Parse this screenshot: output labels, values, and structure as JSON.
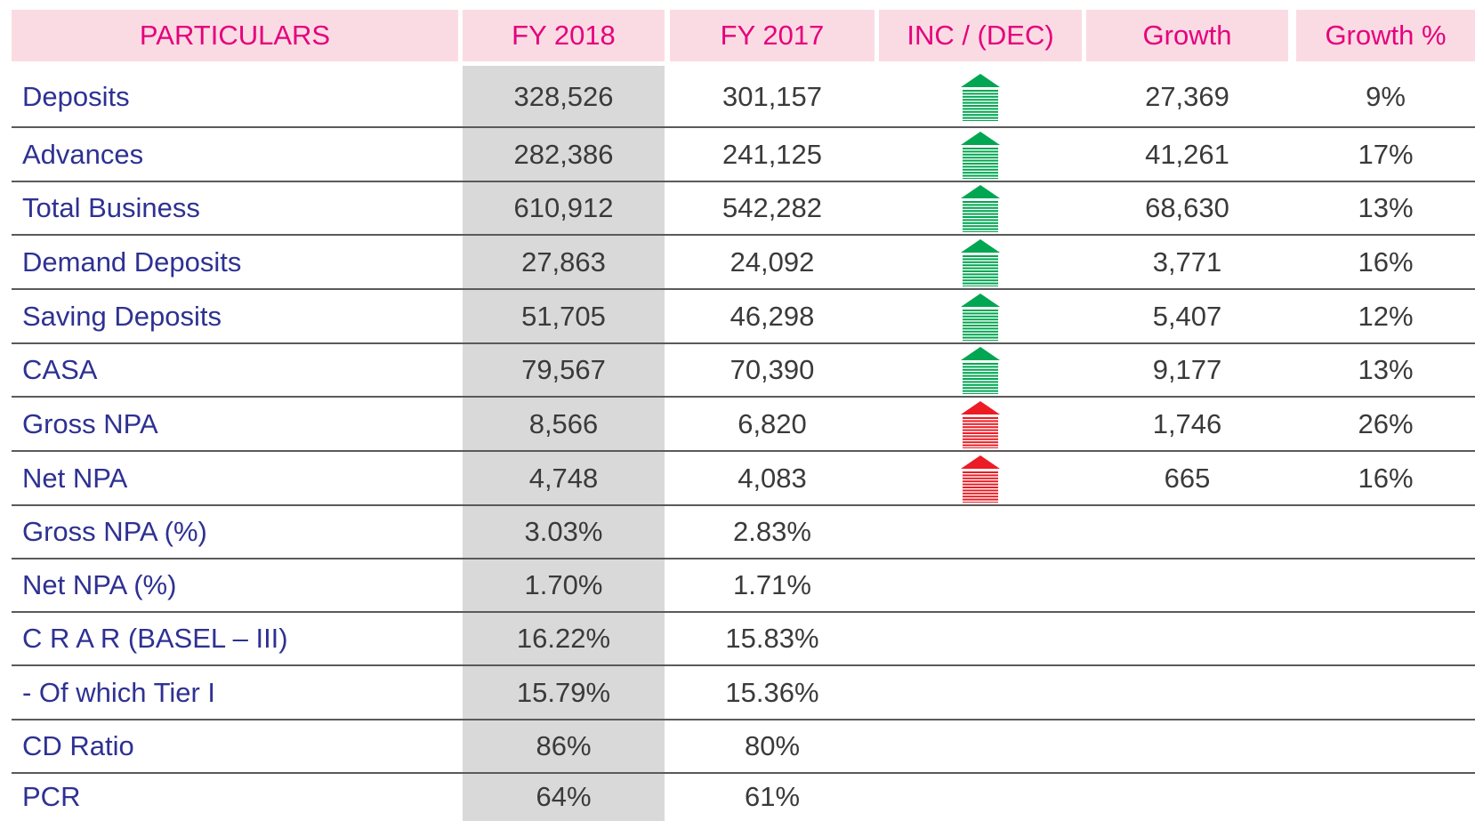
{
  "table": {
    "header": [
      "PARTICULARS",
      "FY 2018",
      "FY 2017",
      "INC / (DEC)",
      "Growth",
      "Growth %"
    ],
    "rows": [
      {
        "label": "Deposits",
        "fy2018": "328,526",
        "fy2017": "301,157",
        "growth": "27,369",
        "growth_pct": "9%"
      },
      {
        "label": "Advances",
        "fy2018": "282,386",
        "fy2017": "241,125",
        "growth": "41,261",
        "growth_pct": "17%"
      },
      {
        "label": "Total Business",
        "fy2018": "610,912",
        "fy2017": "542,282",
        "growth": "68,630",
        "growth_pct": "13%"
      },
      {
        "label": "Demand Deposits",
        "fy2018": "27,863",
        "fy2017": "24,092",
        "growth": "3,771",
        "growth_pct": "16%"
      },
      {
        "label": "Saving Deposits",
        "fy2018": "51,705",
        "fy2017": "46,298",
        "growth": "5,407",
        "growth_pct": "12%"
      },
      {
        "label": "CASA",
        "fy2018": "79,567",
        "fy2017": "70,390",
        "growth": "9,177",
        "growth_pct": "13%"
      },
      {
        "label": "Gross NPA",
        "fy2018": "8,566",
        "fy2017": "6,820",
        "growth": "1,746",
        "growth_pct": "26%"
      },
      {
        "label": "Net NPA",
        "fy2018": "4,748",
        "fy2017": "4,083",
        "growth": "665",
        "growth_pct": "16%"
      },
      {
        "label": "Gross NPA (%)",
        "fy2018": "3.03%",
        "fy2017": "2.83%"
      },
      {
        "label": "Net NPA (%)",
        "fy2018": "1.70%",
        "fy2017": "1.71%"
      },
      {
        "label": "C R A R (BASEL – III)",
        "fy2018": "16.22%",
        "fy2017": "15.83%"
      },
      {
        "label": "- Of which Tier I",
        "fy2018": "15.79%",
        "fy2017": "15.36%"
      },
      {
        "label": "CD Ratio",
        "fy2018": "86%",
        "fy2017": "80%"
      },
      {
        "label": "PCR",
        "fy2018": "64%",
        "fy2017": "61%"
      }
    ]
  }
}
